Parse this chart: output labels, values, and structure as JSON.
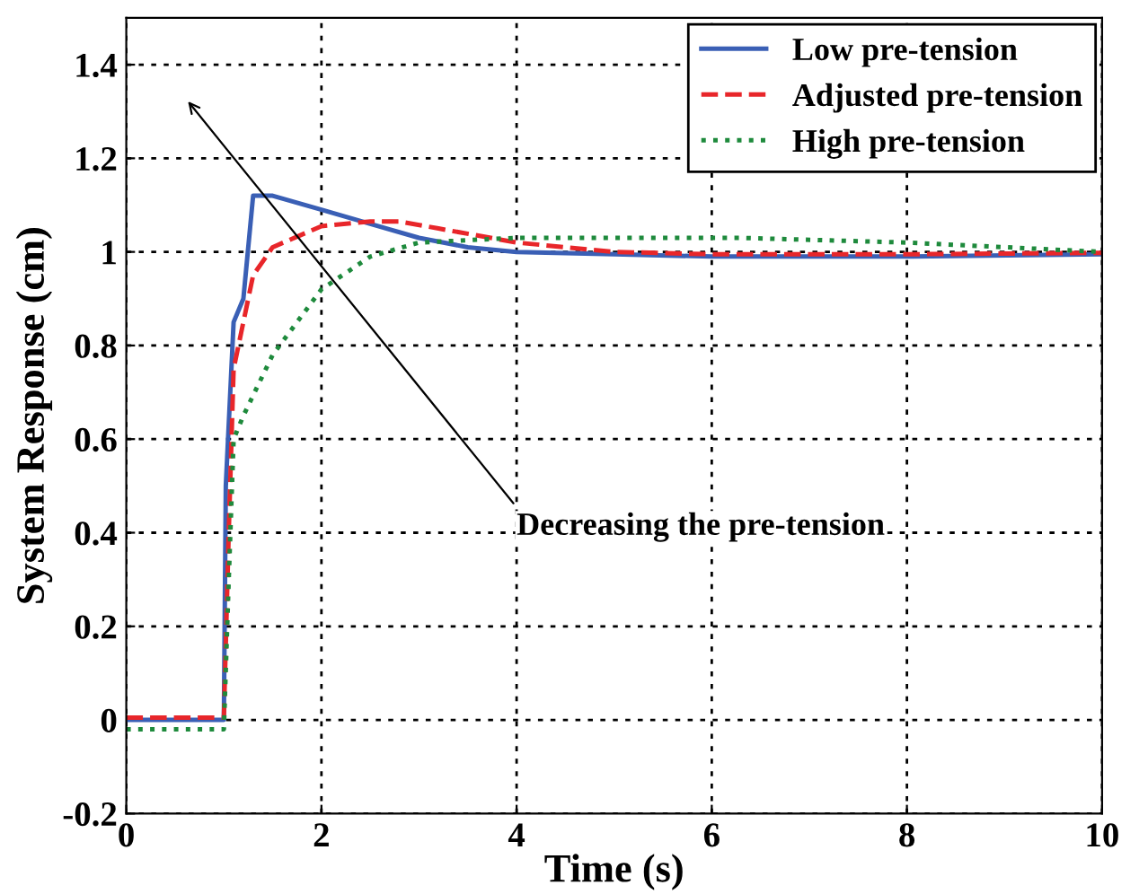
{
  "chart_data": {
    "type": "line",
    "xlabel": "Time (s)",
    "ylabel": "System Response (cm)",
    "xlim": [
      0,
      10
    ],
    "xticks": [
      0,
      2,
      4,
      6,
      8,
      10
    ],
    "ylim": [
      -0.2,
      1.5
    ],
    "yticks": [
      -0.2,
      0,
      0.2,
      0.4,
      0.6,
      0.8,
      1,
      1.2,
      1.4
    ],
    "grid": true,
    "legend": "top right",
    "marker": "none",
    "annotations": [
      "Decreasing the pre-tension"
    ],
    "series": [
      {
        "name": "Low pre-tension",
        "color": "#3a5fb5",
        "line_style": "solid",
        "x": [
          0,
          1.0,
          1.02,
          1.1,
          1.2,
          1.3,
          1.5,
          2,
          2.5,
          3,
          3.5,
          4,
          5,
          6,
          8,
          10
        ],
        "values": [
          0,
          0,
          0.5,
          0.85,
          0.9,
          1.12,
          1.12,
          1.09,
          1.06,
          1.03,
          1.01,
          1.0,
          0.995,
          0.99,
          0.99,
          0.995
        ]
      },
      {
        "name": "Adjusted pre-tension",
        "color": "#e8262a",
        "line_style": "dashed",
        "x": [
          0,
          1.0,
          1.05,
          1.1,
          1.2,
          1.3,
          1.5,
          2,
          2.5,
          2.8,
          3.2,
          4,
          5,
          6,
          8,
          10
        ],
        "values": [
          0.005,
          0.005,
          0.4,
          0.75,
          0.85,
          0.95,
          1.01,
          1.055,
          1.065,
          1.065,
          1.05,
          1.02,
          1.0,
          0.995,
          0.995,
          0.998
        ]
      },
      {
        "name": "High pre-tension",
        "color": "#1e8a3c",
        "line_style": "dotted",
        "x": [
          0,
          1.0,
          1.05,
          1.1,
          1.2,
          1.5,
          2,
          2.5,
          3,
          4,
          5,
          6,
          6.3,
          8,
          9,
          10
        ],
        "values": [
          -0.02,
          -0.02,
          0.3,
          0.6,
          0.65,
          0.78,
          0.92,
          0.99,
          1.02,
          1.03,
          1.03,
          1.03,
          1.03,
          1.02,
          1.01,
          1.0
        ]
      }
    ]
  }
}
